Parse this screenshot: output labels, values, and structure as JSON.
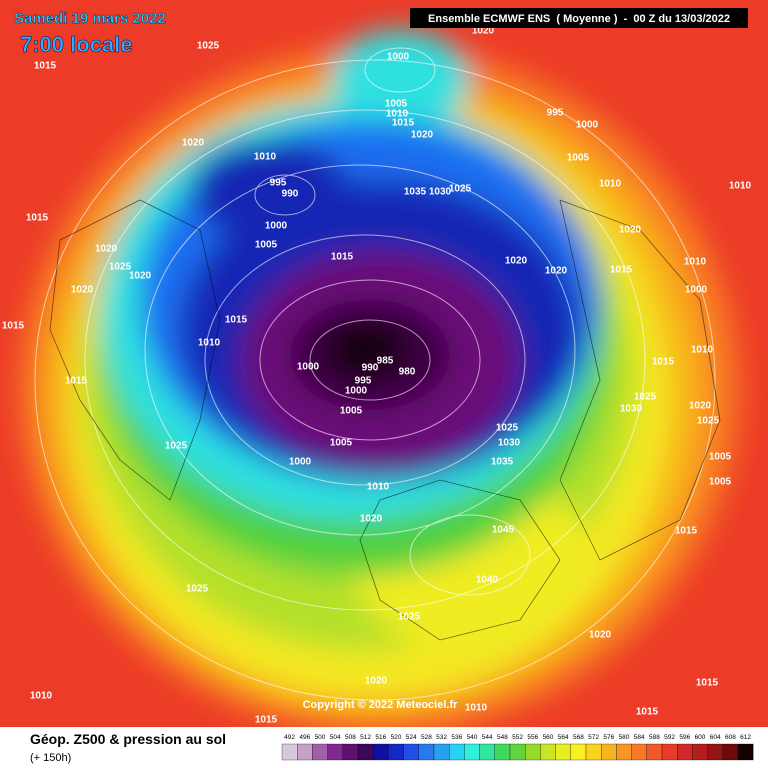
{
  "header": {
    "date": "Samedi 19 mars 2022",
    "time": "7:00 locale",
    "model": "Ensemble ECMWF ENS  ( Moyenne )  -  00 Z du 13/03/2022"
  },
  "copyright": "Copyright © 2022 Meteociel.fr",
  "footer": {
    "title": "Géop. Z500 & pression au sol",
    "subtitle": "(+ 150h)"
  },
  "scale": {
    "values": [
      492,
      496,
      500,
      504,
      508,
      512,
      516,
      520,
      524,
      528,
      532,
      536,
      540,
      544,
      548,
      552,
      556,
      560,
      564,
      568,
      572,
      576,
      580,
      584,
      588,
      592,
      596,
      600,
      604,
      608,
      612
    ],
    "colors": [
      "#d8c8dc",
      "#c8a0c8",
      "#a060a8",
      "#802890",
      "#601070",
      "#3c0858",
      "#1010a0",
      "#1428c8",
      "#1e50e6",
      "#2878f0",
      "#28a0f0",
      "#28d2f0",
      "#30f0e0",
      "#30e6a0",
      "#40d860",
      "#64d23c",
      "#96dc28",
      "#c8e628",
      "#e6f020",
      "#f8f020",
      "#f8d21e",
      "#f8b41e",
      "#f89628",
      "#f87828",
      "#f05a28",
      "#e63c28",
      "#d22828",
      "#b41e1e",
      "#961414",
      "#6e0a0a",
      "#140000"
    ]
  },
  "isobar_labels": [
    "1015",
    "1025",
    "1000",
    "1020",
    "1005",
    "1010",
    "1015",
    "1020",
    "995",
    "1000",
    "1005",
    "1010",
    "1020",
    "1010",
    "995",
    "990",
    "1000",
    "1005",
    "1035",
    "1030",
    "1025",
    "1015",
    "1020",
    "1025",
    "1020",
    "1020",
    "1015",
    "1020",
    "1020",
    "1015",
    "1020",
    "1015",
    "1015",
    "1010",
    "1015",
    "1000",
    "990",
    "985",
    "980",
    "995",
    "1000",
    "1005",
    "1005",
    "1000",
    "1025",
    "1025",
    "1030",
    "1035",
    "1010",
    "1020",
    "1045",
    "1040",
    "1025",
    "1025",
    "1020",
    "1020",
    "1010",
    "1010",
    "1015",
    "1015",
    "1015",
    "1010",
    "1010",
    "1015",
    "1030",
    "1025",
    "1020",
    "1025",
    "1005",
    "1005",
    "1015",
    "1000",
    "1010"
  ]
}
